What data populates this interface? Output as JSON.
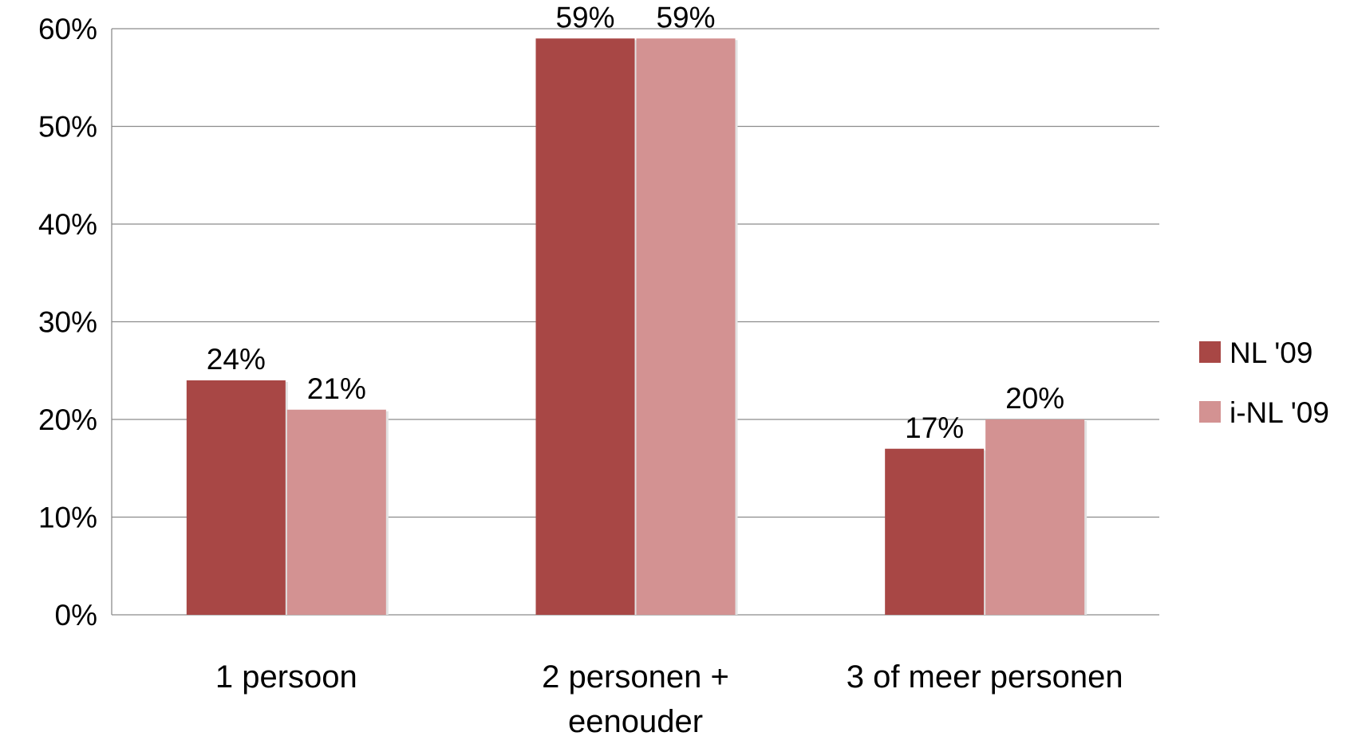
{
  "chart_data": {
    "type": "bar",
    "title": "",
    "xlabel": "",
    "ylabel": "",
    "ylim": [
      0,
      60
    ],
    "y_ticks": [
      "0%",
      "10%",
      "20%",
      "30%",
      "40%",
      "50%",
      "60%"
    ],
    "y_tick_values": [
      0,
      10,
      20,
      30,
      40,
      50,
      60
    ],
    "grid": true,
    "legend_position": "right",
    "categories": [
      [
        "1 persoon"
      ],
      [
        "2 personen +",
        "eenouder"
      ],
      [
        "3 of meer personen"
      ]
    ],
    "series": [
      {
        "name": "NL '09",
        "color": "#a84745",
        "values": [
          24,
          59,
          17
        ],
        "labels": [
          "24%",
          "59%",
          "17%"
        ]
      },
      {
        "name": "i-NL '09",
        "color": "#d39292",
        "values": [
          21,
          59,
          20
        ],
        "labels": [
          "21%",
          "59%",
          "20%"
        ]
      }
    ]
  }
}
